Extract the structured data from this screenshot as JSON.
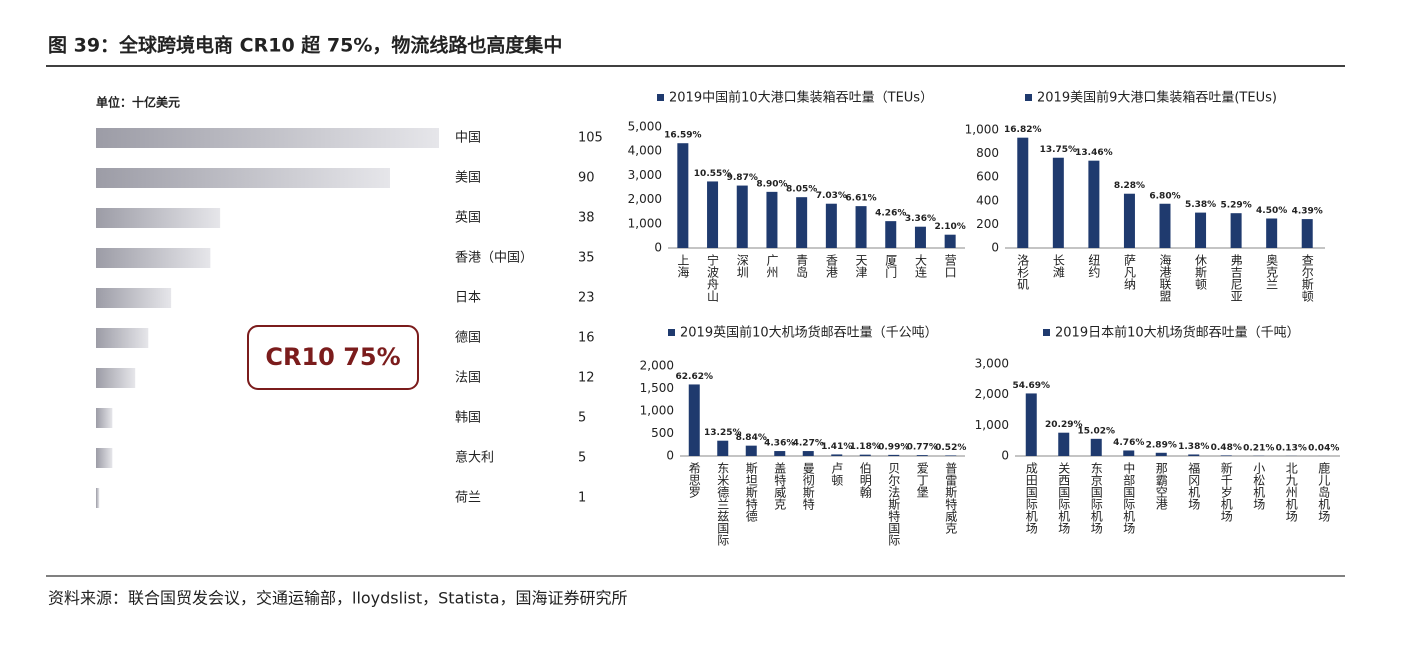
{
  "header": {
    "title": "图 39：全球跨境电商 CR10 超 75%，物流线路也高度集中"
  },
  "footer": {
    "source": "资料来源：联合国贸发会议，交通运输部，lloydslist，Statista，国海证券研究所"
  },
  "chart_data": [
    {
      "type": "bar",
      "orientation": "horizontal",
      "unit_label": "单位：十亿美元",
      "categories": [
        "中国",
        "美国",
        "英国",
        "香港（中国）",
        "日本",
        "德国",
        "法国",
        "韩国",
        "意大利",
        "荷兰"
      ],
      "values": [
        105,
        90,
        38,
        35,
        23,
        16,
        12,
        5,
        5,
        1
      ],
      "color": "#b5b5bd",
      "annotation": "CR10 75%"
    },
    {
      "type": "bar",
      "ylim": [
        0,
        5000
      ],
      "yticks": [
        0,
        {
          "value": 1000,
          "label": "1,000"
        },
        {
          "value": 2000,
          "label": "2,000"
        },
        {
          "value": 3000,
          "label": "3,000"
        },
        {
          "value": 4000,
          "label": "4,000"
        },
        {
          "value": 5000,
          "label": "5,000"
        }
      ],
      "categories": [
        "上海",
        "宁波舟山",
        "深圳",
        "广州",
        "青岛",
        "香港",
        "天津",
        "厦门",
        "大连",
        "营口"
      ],
      "series": [
        {
          "name": "2019中国前10大港口集装箱吞吐量（TEUs）",
          "color": "#1f3a6e",
          "values": [
            4330,
            2750,
            2580,
            2320,
            2100,
            1830,
            1730,
            1110,
            880,
            550
          ]
        }
      ],
      "share_labels": [
        "16.59%",
        "10.55%",
        "9.87%",
        "8.90%",
        "8.05%",
        "7.03%",
        "6.61%",
        "4.26%",
        "3.36%",
        "2.10%"
      ]
    },
    {
      "type": "bar",
      "ylim": [
        0,
        1000
      ],
      "yticks": [
        0,
        200,
        400,
        600,
        800,
        {
          "value": 1000,
          "label": "1,000"
        }
      ],
      "categories": [
        "洛杉矶",
        "长滩",
        "纽约",
        "萨凡纳",
        "海港联盟",
        "休斯顿",
        "弗吉尼亚",
        "奥克兰",
        "查尔斯顿"
      ],
      "series": [
        {
          "name": "2019美国前9大港口集装箱吞吐量(TEUs)",
          "color": "#1f3a6e",
          "values": [
            935,
            765,
            740,
            460,
            375,
            300,
            295,
            250,
            245
          ]
        }
      ],
      "share_labels": [
        "16.82%",
        "13.75%",
        "13.46%",
        "8.28%",
        "6.80%",
        "5.38%",
        "5.29%",
        "4.50%",
        "4.39%"
      ]
    },
    {
      "type": "bar",
      "ylim": [
        0,
        2000
      ],
      "yticks": [
        0,
        500,
        {
          "value": 1000,
          "label": "1,000"
        },
        {
          "value": 1500,
          "label": "1,500"
        },
        {
          "value": 2000,
          "label": "2,000"
        }
      ],
      "categories": [
        "希思罗",
        "东米德兰兹国际",
        "斯坦斯特德",
        "盖特威克",
        "曼彻斯特",
        "卢顿",
        "伯明翰",
        "贝尔法斯特国际",
        "爱丁堡",
        "普雷斯特威克"
      ],
      "series": [
        {
          "name": "2019英国前10大机场货邮吞吐量（千公吨）",
          "color": "#1f3a6e",
          "values": [
            1590,
            340,
            230,
            110,
            110,
            35,
            30,
            25,
            20,
            13
          ]
        }
      ],
      "share_labels": [
        "62.62%",
        "13.25%",
        "8.84%",
        "4.36%",
        "4.27%",
        "1.41%",
        "1.18%",
        "0.99%",
        "0.77%",
        "0.52%"
      ]
    },
    {
      "type": "bar",
      "ylim": [
        0,
        3000
      ],
      "yticks": [
        0,
        {
          "value": 1000,
          "label": "1,000"
        },
        {
          "value": 2000,
          "label": "2,000"
        },
        {
          "value": 3000,
          "label": "3,000"
        }
      ],
      "categories": [
        "成田国际机场",
        "关西国际机场",
        "东京国际机场",
        "中部国际机场",
        "那霸空港",
        "福冈机场",
        "新千岁机场",
        "小松机场",
        "北九州机场",
        "鹿儿岛机场"
      ],
      "series": [
        {
          "name": "2019日本前10大机场货邮吞吐量（千吨）",
          "color": "#1f3a6e",
          "values": [
            2040,
            760,
            560,
            180,
            105,
            50,
            20,
            8,
            5,
            2
          ]
        }
      ],
      "share_labels": [
        "54.69%",
        "20.29%",
        "15.02%",
        "4.76%",
        "2.89%",
        "1.38%",
        "0.48%",
        "0.21%",
        "0.13%",
        "0.04%"
      ]
    }
  ]
}
